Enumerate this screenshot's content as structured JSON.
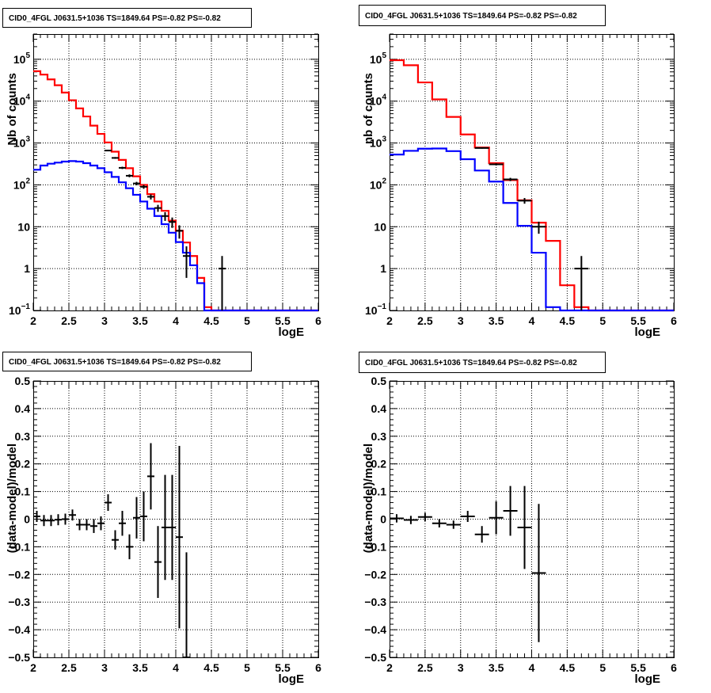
{
  "chart_data": [
    {
      "type": "histogram",
      "title": "CID0_4FGL J0631.5+1036 TS=1849.64 PS=-0.82 PS=-0.82",
      "xlabel": "logE",
      "ylabel": "Nb of counts",
      "xlim": [
        2,
        6
      ],
      "ylim": [
        0.1,
        400000
      ],
      "yscale": "log",
      "grid": true,
      "x_ticks": [
        "2",
        "2.5",
        "3",
        "3.5",
        "4",
        "4.5",
        "5",
        "5.5",
        "6"
      ],
      "y_ticks": [
        {
          "v": 0.1,
          "mant": "10",
          "exp": "−1"
        },
        {
          "v": 1,
          "mant": "1",
          "exp": ""
        },
        {
          "v": 10,
          "mant": "10",
          "exp": ""
        },
        {
          "v": 100,
          "mant": "10",
          "exp": "2"
        },
        {
          "v": 1000,
          "mant": "10",
          "exp": "3"
        },
        {
          "v": 10000,
          "mant": "10",
          "exp": "4"
        },
        {
          "v": 100000,
          "mant": "10",
          "exp": "5"
        }
      ],
      "bin_width": 0.1,
      "series": [
        {
          "color": "#ff0000",
          "values": [
            52000,
            43000,
            33000,
            24000,
            16000,
            10500,
            6700,
            4300,
            2600,
            1650,
            1030,
            620,
            395,
            250,
            160,
            100,
            60,
            40,
            24,
            14,
            8,
            4.2,
            2,
            0.6,
            0.12,
            0.1,
            0.1,
            0.1,
            0.1,
            0.1,
            0.1,
            0.1,
            0.1,
            0.1,
            0.1,
            0.1,
            0.1,
            0.1,
            0.1,
            0.1
          ]
        },
        {
          "color": "#0000ff",
          "values": [
            230,
            290,
            320,
            340,
            360,
            370,
            360,
            330,
            290,
            250,
            200,
            155,
            115,
            83,
            58,
            40,
            27,
            18,
            11.5,
            7.2,
            4.3,
            2.4,
            1.2,
            0.45,
            0.1,
            0.1,
            0.1,
            0.1,
            0.1,
            0.1,
            0.1,
            0.1,
            0.1,
            0.1,
            0.1,
            0.1,
            0.1,
            0.1,
            0.1,
            0.1
          ]
        }
      ],
      "points": [
        {
          "x": 3.05,
          "y": 660,
          "err": 26
        },
        {
          "x": 3.15,
          "y": 440,
          "err": 21
        },
        {
          "x": 3.25,
          "y": 255,
          "err": 16
        },
        {
          "x": 3.35,
          "y": 165,
          "err": 13
        },
        {
          "x": 3.45,
          "y": 108,
          "err": 10
        },
        {
          "x": 3.55,
          "y": 90,
          "err": 9.5
        },
        {
          "x": 3.65,
          "y": 52,
          "err": 7.2
        },
        {
          "x": 3.75,
          "y": 28,
          "err": 5.3
        },
        {
          "x": 3.85,
          "y": 18,
          "err": 4.2
        },
        {
          "x": 3.95,
          "y": 13,
          "err": 3.6
        },
        {
          "x": 4.05,
          "y": 8,
          "err": 2.8
        },
        {
          "x": 4.15,
          "y": 2,
          "err": 1.4
        },
        {
          "x": 4.65,
          "y": 1,
          "err": 1
        }
      ]
    },
    {
      "type": "histogram",
      "title": "CID0_4FGL J0631.5+1036 TS=1849.64 PS=-0.82 PS=-0.82",
      "xlabel": "logE",
      "ylabel": "nb of counts",
      "xlim": [
        2,
        6
      ],
      "ylim": [
        0.1,
        400000
      ],
      "yscale": "log",
      "grid": true,
      "x_ticks": [
        "2",
        "2.5",
        "3",
        "3.5",
        "4",
        "4.5",
        "5",
        "5.5",
        "6"
      ],
      "y_ticks": [
        {
          "v": 0.1,
          "mant": "10",
          "exp": "−1"
        },
        {
          "v": 1,
          "mant": "1",
          "exp": ""
        },
        {
          "v": 10,
          "mant": "10",
          "exp": ""
        },
        {
          "v": 100,
          "mant": "10",
          "exp": "2"
        },
        {
          "v": 1000,
          "mant": "10",
          "exp": "3"
        },
        {
          "v": 10000,
          "mant": "10",
          "exp": "4"
        },
        {
          "v": 100000,
          "mant": "10",
          "exp": "5"
        }
      ],
      "bin_width": 0.2,
      "series": [
        {
          "color": "#ff0000",
          "values": [
            95000,
            72000,
            28000,
            11000,
            4200,
            1600,
            780,
            330,
            130,
            43,
            12.5,
            4.6,
            0.4,
            0.12,
            0.1,
            0.1,
            0.1,
            0.1,
            0.1,
            0.1
          ]
        },
        {
          "color": "#0000ff",
          "values": [
            530,
            650,
            730,
            740,
            640,
            410,
            220,
            120,
            37,
            10.5,
            2.4,
            0.12,
            0.1,
            0.1,
            0.1,
            0.1,
            0.1,
            0.1,
            0.1,
            0.1
          ]
        }
      ],
      "points": [
        {
          "x": 3.3,
          "y": 760,
          "err": 28
        },
        {
          "x": 3.5,
          "y": 310,
          "err": 18
        },
        {
          "x": 3.7,
          "y": 135,
          "err": 12
        },
        {
          "x": 3.9,
          "y": 42,
          "err": 6.5
        },
        {
          "x": 4.1,
          "y": 10,
          "err": 3.2
        },
        {
          "x": 4.7,
          "y": 1,
          "err": 1
        }
      ]
    },
    {
      "type": "scatter",
      "title": "CID0_4FGL J0631.5+1036 TS=1849.64 PS=-0.82 PS=-0.82",
      "xlabel": "logE",
      "ylabel": "(data-model)/model",
      "xlim": [
        2,
        6
      ],
      "ylim": [
        -0.5,
        0.5
      ],
      "yscale": "linear",
      "grid": true,
      "x_ticks": [
        "2",
        "2.5",
        "3",
        "3.5",
        "4",
        "4.5",
        "5",
        "5.5",
        "6"
      ],
      "y_ticks": [
        {
          "v": -0.5,
          "t": "−0.5"
        },
        {
          "v": -0.4,
          "t": "−0.4"
        },
        {
          "v": -0.3,
          "t": "−0.3"
        },
        {
          "v": -0.2,
          "t": "−0.2"
        },
        {
          "v": -0.1,
          "t": "−0.1"
        },
        {
          "v": 0,
          "t": "0"
        },
        {
          "v": 0.1,
          "t": "0.1"
        },
        {
          "v": 0.2,
          "t": "0.2"
        },
        {
          "v": 0.3,
          "t": "0.3"
        },
        {
          "v": 0.4,
          "t": "0.4"
        },
        {
          "v": 0.5,
          "t": "0.5"
        }
      ],
      "xerr": 0.05,
      "points": [
        {
          "x": 2.05,
          "y": 0.01,
          "err": 0.02
        },
        {
          "x": 2.15,
          "y": -0.005,
          "err": 0.02
        },
        {
          "x": 2.25,
          "y": -0.005,
          "err": 0.02
        },
        {
          "x": 2.35,
          "y": -0.002,
          "err": 0.02
        },
        {
          "x": 2.45,
          "y": 0.0,
          "err": 0.02
        },
        {
          "x": 2.55,
          "y": 0.015,
          "err": 0.02
        },
        {
          "x": 2.65,
          "y": -0.02,
          "err": 0.02
        },
        {
          "x": 2.75,
          "y": -0.02,
          "err": 0.02
        },
        {
          "x": 2.85,
          "y": -0.025,
          "err": 0.025
        },
        {
          "x": 2.95,
          "y": -0.015,
          "err": 0.025
        },
        {
          "x": 3.05,
          "y": 0.06,
          "err": 0.03
        },
        {
          "x": 3.15,
          "y": -0.075,
          "err": 0.035
        },
        {
          "x": 3.25,
          "y": -0.015,
          "err": 0.045
        },
        {
          "x": 3.35,
          "y": -0.1,
          "err": 0.045
        },
        {
          "x": 3.45,
          "y": 0.005,
          "err": 0.075
        },
        {
          "x": 3.55,
          "y": 0.01,
          "err": 0.09
        },
        {
          "x": 3.65,
          "y": 0.155,
          "err": 0.12
        },
        {
          "x": 3.75,
          "y": -0.155,
          "err": 0.13
        },
        {
          "x": 3.85,
          "y": -0.03,
          "err": 0.19
        },
        {
          "x": 3.95,
          "y": -0.03,
          "err": 0.19
        },
        {
          "x": 4.05,
          "y": -0.065,
          "err": 0.33
        },
        {
          "x": 4.15,
          "y": -0.5,
          "err": 0.38
        }
      ]
    },
    {
      "type": "scatter",
      "title": "CID0_4FGL J0631.5+1036 TS=1849.64 PS=-0.82 PS=-0.82",
      "xlabel": "logE",
      "ylabel": "(data-model)/model",
      "xlim": [
        2,
        6
      ],
      "ylim": [
        -0.5,
        0.5
      ],
      "yscale": "linear",
      "grid": true,
      "x_ticks": [
        "2",
        "2.5",
        "3",
        "3.5",
        "4",
        "4.5",
        "5",
        "5.5",
        "6"
      ],
      "y_ticks": [
        {
          "v": -0.5,
          "t": "−0.5"
        },
        {
          "v": -0.4,
          "t": "−0.4"
        },
        {
          "v": -0.3,
          "t": "−0.3"
        },
        {
          "v": -0.2,
          "t": "−0.2"
        },
        {
          "v": -0.1,
          "t": "−0.1"
        },
        {
          "v": 0,
          "t": "0"
        },
        {
          "v": 0.1,
          "t": "0.1"
        },
        {
          "v": 0.2,
          "t": "0.2"
        },
        {
          "v": 0.3,
          "t": "0.3"
        },
        {
          "v": 0.4,
          "t": "0.4"
        },
        {
          "v": 0.5,
          "t": "0.5"
        }
      ],
      "xerr": 0.1,
      "points": [
        {
          "x": 2.1,
          "y": 0.003,
          "err": 0.015
        },
        {
          "x": 2.3,
          "y": -0.003,
          "err": 0.015
        },
        {
          "x": 2.5,
          "y": 0.008,
          "err": 0.015
        },
        {
          "x": 2.7,
          "y": -0.015,
          "err": 0.015
        },
        {
          "x": 2.9,
          "y": -0.02,
          "err": 0.015
        },
        {
          "x": 3.1,
          "y": 0.01,
          "err": 0.02
        },
        {
          "x": 3.3,
          "y": -0.055,
          "err": 0.03
        },
        {
          "x": 3.5,
          "y": 0.005,
          "err": 0.06
        },
        {
          "x": 3.7,
          "y": 0.03,
          "err": 0.09
        },
        {
          "x": 3.9,
          "y": -0.03,
          "err": 0.15
        },
        {
          "x": 4.1,
          "y": -0.195,
          "err": 0.25
        }
      ]
    }
  ]
}
